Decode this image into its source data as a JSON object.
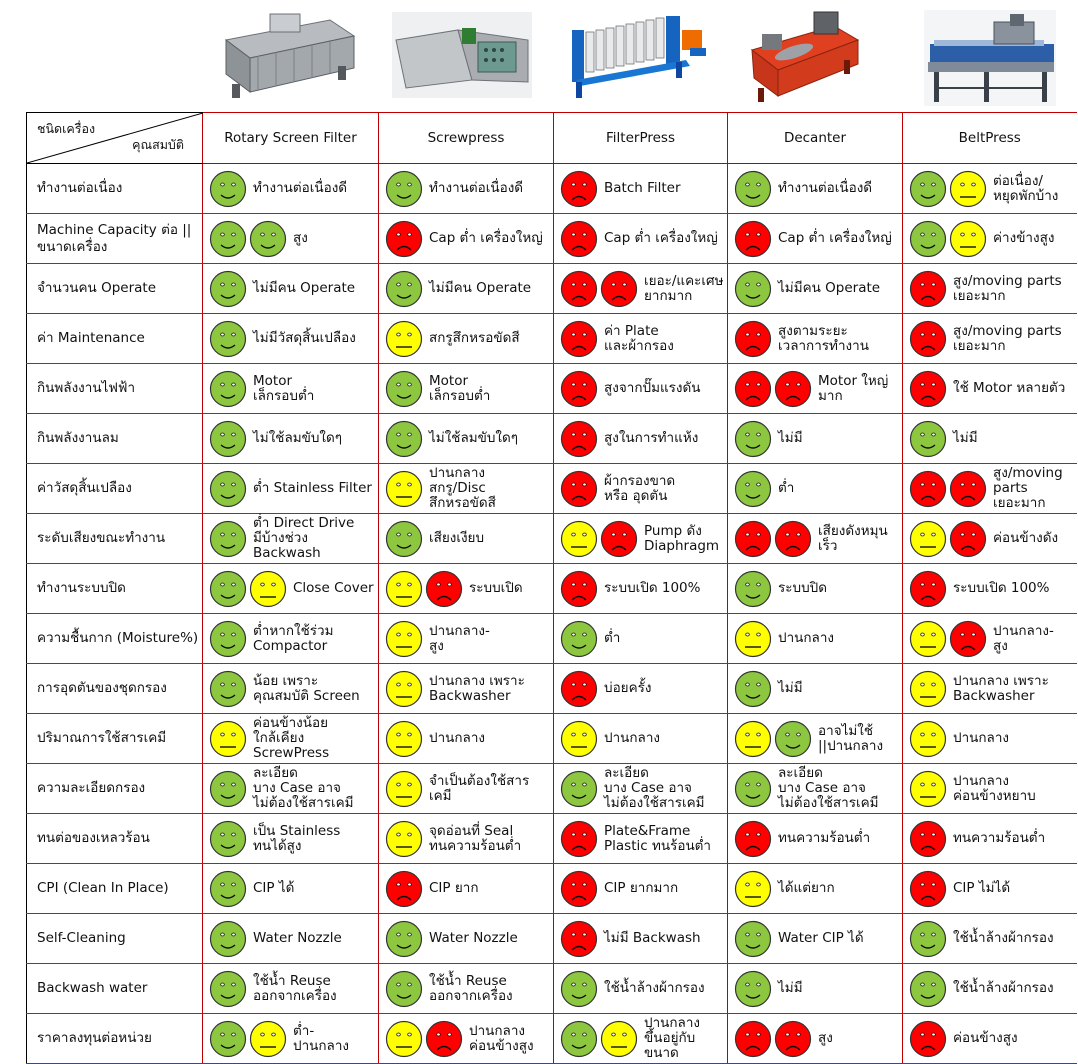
{
  "header": {
    "corner_top": "ชนิดเครื่อง",
    "corner_bottom": "คุณสมบัติ",
    "machines": [
      "Rotary Screen Filter",
      "Screwpress",
      "FilterPress",
      "Decanter",
      "BeltPress"
    ],
    "machine_images": [
      "rotary-screen-filter-image",
      "screwpress-image",
      "filterpress-image",
      "decanter-image",
      "beltpress-image"
    ]
  },
  "colors": {
    "green": "#8dc63f",
    "yellow": "#ffff00",
    "red": "#ff0000"
  },
  "rows": [
    {
      "label": "ทำงานต่อเนื่อง",
      "cells": [
        {
          "faces": [
            "g"
          ],
          "text": "ทำงานต่อเนื่องดี"
        },
        {
          "faces": [
            "g"
          ],
          "text": "ทำงานต่อเนื่องดี"
        },
        {
          "faces": [
            "r"
          ],
          "text": "Batch Filter"
        },
        {
          "faces": [
            "g"
          ],
          "text": "ทำงานต่อเนื่องดี"
        },
        {
          "faces": [
            "g",
            "y"
          ],
          "text": "ต่อเนื่อง/\nหยุดพักบ้าง"
        }
      ]
    },
    {
      "label": "Machine Capacity ต่อ ||\nขนาดเครื่อง",
      "cells": [
        {
          "faces": [
            "g",
            "g"
          ],
          "text": "สูง"
        },
        {
          "faces": [
            "r"
          ],
          "text": "Cap ต่ำ เครื่องใหญ่"
        },
        {
          "faces": [
            "r"
          ],
          "text": "Cap ต่ำ เครื่องใหญ่"
        },
        {
          "faces": [
            "r"
          ],
          "text": "Cap ต่ำ เครื่องใหญ่"
        },
        {
          "faces": [
            "g",
            "y"
          ],
          "text": "ค่างข้างสูง"
        }
      ]
    },
    {
      "label": "จำนวนคน Operate",
      "cells": [
        {
          "faces": [
            "g"
          ],
          "text": "ไม่มีคน Operate"
        },
        {
          "faces": [
            "g"
          ],
          "text": "ไม่มีคน Operate"
        },
        {
          "faces": [
            "r",
            "r"
          ],
          "text": "เยอะ/แคะเศษ\nยากมาก"
        },
        {
          "faces": [
            "g"
          ],
          "text": "ไม่มีคน Operate"
        },
        {
          "faces": [
            "r"
          ],
          "text": "สูง/moving parts\nเยอะมาก"
        }
      ]
    },
    {
      "label": "ค่า Maintenance",
      "cells": [
        {
          "faces": [
            "g"
          ],
          "text": "ไม่มีวัสดุสิ้นเปลือง"
        },
        {
          "faces": [
            "y"
          ],
          "text": "สกรูสึกหรอขัดสี"
        },
        {
          "faces": [
            "r"
          ],
          "text": "ค่า Plate\nและผ้ากรอง"
        },
        {
          "faces": [
            "r"
          ],
          "text": "สูงตามระยะ\nเวลาการทำงาน"
        },
        {
          "faces": [
            "r"
          ],
          "text": "สูง/moving parts\nเยอะมาก"
        }
      ]
    },
    {
      "label": "กินพลังงานไฟฟ้า",
      "cells": [
        {
          "faces": [
            "g"
          ],
          "text": "Motor\nเล็กรอบต่ำ"
        },
        {
          "faces": [
            "g"
          ],
          "text": "Motor\nเล็กรอบต่ำ"
        },
        {
          "faces": [
            "r"
          ],
          "text": "สูงจากปั๊มแรงดัน"
        },
        {
          "faces": [
            "r",
            "r"
          ],
          "text": "Motor ใหญ่\nมาก"
        },
        {
          "faces": [
            "r"
          ],
          "text": "ใช้ Motor หลายตัว"
        }
      ]
    },
    {
      "label": "กินพลังงานลม",
      "cells": [
        {
          "faces": [
            "g"
          ],
          "text": "ไม่ใช้ลมขับใดๆ"
        },
        {
          "faces": [
            "g"
          ],
          "text": "ไม่ใช้ลมขับใดๆ"
        },
        {
          "faces": [
            "r"
          ],
          "text": "สูงในการทำแห้ง"
        },
        {
          "faces": [
            "g"
          ],
          "text": "ไม่มี"
        },
        {
          "faces": [
            "g"
          ],
          "text": "ไม่มี"
        }
      ]
    },
    {
      "label": "ค่าวัสดุสิ้นเปลือง",
      "cells": [
        {
          "faces": [
            "g"
          ],
          "text": "ต่ำ Stainless Filter"
        },
        {
          "faces": [
            "y"
          ],
          "text": "ปานกลาง\nสกรู/Disc\nสึกหรอขัดสี"
        },
        {
          "faces": [
            "r"
          ],
          "text": "ผ้ากรองขาด\nหรือ อุดตัน"
        },
        {
          "faces": [
            "g"
          ],
          "text": "ต่ำ"
        },
        {
          "faces": [
            "r",
            "r"
          ],
          "text": "สูง/moving\nparts\nเยอะมาก"
        }
      ]
    },
    {
      "label": "ระดับเสียงขณะทำงาน",
      "cells": [
        {
          "faces": [
            "g"
          ],
          "text": "ต่ำ Direct Drive\nมีบ้างช่วง Backwash"
        },
        {
          "faces": [
            "g"
          ],
          "text": "เสียงเงียบ"
        },
        {
          "faces": [
            "y",
            "r"
          ],
          "text": "Pump ดัง\nDiaphragm"
        },
        {
          "faces": [
            "r",
            "r"
          ],
          "text": "เสียงดังหมุน\nเร็ว"
        },
        {
          "faces": [
            "y",
            "r"
          ],
          "text": "ค่อนข้างดัง"
        }
      ]
    },
    {
      "label": "ทำงานระบบปิด",
      "cells": [
        {
          "faces": [
            "g",
            "y"
          ],
          "text": "Close Cover"
        },
        {
          "faces": [
            "y",
            "r"
          ],
          "text": "ระบบเปิด"
        },
        {
          "faces": [
            "r"
          ],
          "text": "ระบบเปิด 100%"
        },
        {
          "faces": [
            "g"
          ],
          "text": "ระบบปิด"
        },
        {
          "faces": [
            "r"
          ],
          "text": "ระบบเปิด 100%"
        }
      ]
    },
    {
      "label": "ความชื้นกาก (Moisture%)",
      "cells": [
        {
          "faces": [
            "g"
          ],
          "text": "ต่ำหากใช้ร่วม\nCompactor"
        },
        {
          "faces": [
            "y"
          ],
          "text": "ปานกลาง-\nสูง"
        },
        {
          "faces": [
            "g"
          ],
          "text": "ต่ำ"
        },
        {
          "faces": [
            "y"
          ],
          "text": "ปานกลาง"
        },
        {
          "faces": [
            "y",
            "r"
          ],
          "text": "ปานกลาง-\nสูง"
        }
      ]
    },
    {
      "label": "การอุดตันของชุดกรอง",
      "cells": [
        {
          "faces": [
            "g"
          ],
          "text": "น้อย เพราะ\nคุณสมบัติ Screen"
        },
        {
          "faces": [
            "y"
          ],
          "text": "ปานกลาง เพราะ\nBackwasher"
        },
        {
          "faces": [
            "r"
          ],
          "text": "บ่อยครั้ง"
        },
        {
          "faces": [
            "g"
          ],
          "text": "ไม่มี"
        },
        {
          "faces": [
            "y"
          ],
          "text": "ปานกลาง เพราะ\nBackwasher"
        }
      ]
    },
    {
      "label": "ปริมาณการใช้สารเคมี",
      "cells": [
        {
          "faces": [
            "y"
          ],
          "text": "ค่อนข้างน้อย\nใกล้เคียง\nScrewPress"
        },
        {
          "faces": [
            "y"
          ],
          "text": "ปานกลาง"
        },
        {
          "faces": [
            "y"
          ],
          "text": "ปานกลาง"
        },
        {
          "faces": [
            "y",
            "g"
          ],
          "text": "อาจไม่ใช้\n||ปานกลาง"
        },
        {
          "faces": [
            "y"
          ],
          "text": "ปานกลาง"
        }
      ]
    },
    {
      "label": "ความละเอียดกรอง",
      "cells": [
        {
          "faces": [
            "g"
          ],
          "text": "ละเอียด\nบาง Case อาจ\nไม่ต้องใช้สารเคมี"
        },
        {
          "faces": [
            "y"
          ],
          "text": "จำเป็นต้องใช้สาร\nเคมี"
        },
        {
          "faces": [
            "g"
          ],
          "text": "ละเอียด\nบาง Case อาจ\nไม่ต้องใช้สารเคมี"
        },
        {
          "faces": [
            "g"
          ],
          "text": "ละเอียด\nบาง Case อาจ\nไม่ต้องใช้สารเคมี"
        },
        {
          "faces": [
            "y"
          ],
          "text": "ปานกลาง\nค่อนข้างหยาบ"
        }
      ]
    },
    {
      "label": "ทนต่อของเหลวร้อน",
      "cells": [
        {
          "faces": [
            "g"
          ],
          "text": "เป็น Stainless\nทนได้สูง"
        },
        {
          "faces": [
            "y"
          ],
          "text": "จุดอ่อนที่ Seal\nทนความร้อนต่ำ"
        },
        {
          "faces": [
            "r"
          ],
          "text": "Plate&Frame\nPlastic ทนร้อนต่ำ"
        },
        {
          "faces": [
            "r"
          ],
          "text": "ทนความร้อนต่ำ"
        },
        {
          "faces": [
            "r"
          ],
          "text": "ทนความร้อนต่ำ"
        }
      ]
    },
    {
      "label": "CPI (Clean In Place)",
      "cells": [
        {
          "faces": [
            "g"
          ],
          "text": "CIP ได้"
        },
        {
          "faces": [
            "r"
          ],
          "text": "CIP ยาก"
        },
        {
          "faces": [
            "r"
          ],
          "text": "CIP ยากมาก"
        },
        {
          "faces": [
            "y"
          ],
          "text": "ได้แต่ยาก"
        },
        {
          "faces": [
            "r"
          ],
          "text": "CIP ไม่ได้"
        }
      ]
    },
    {
      "label": "Self-Cleaning",
      "cells": [
        {
          "faces": [
            "g"
          ],
          "text": "Water Nozzle"
        },
        {
          "faces": [
            "g"
          ],
          "text": "Water Nozzle"
        },
        {
          "faces": [
            "r"
          ],
          "text": "ไม่มี Backwash"
        },
        {
          "faces": [
            "g"
          ],
          "text": "Water CIP ได้"
        },
        {
          "faces": [
            "g"
          ],
          "text": "ใช้น้ำล้างผ้ากรอง"
        }
      ]
    },
    {
      "label": "Backwash water",
      "cells": [
        {
          "faces": [
            "g"
          ],
          "text": "ใช้น้ำ Reuse\nออกจากเครื่อง"
        },
        {
          "faces": [
            "g"
          ],
          "text": "ใช้น้ำ Reuse\nออกจากเครื่อง"
        },
        {
          "faces": [
            "g"
          ],
          "text": "ใช้น้ำล้างผ้ากรอง"
        },
        {
          "faces": [
            "g"
          ],
          "text": "ไม่มี"
        },
        {
          "faces": [
            "g"
          ],
          "text": "ใช้น้ำล้างผ้ากรอง"
        }
      ]
    },
    {
      "label": "ราคาลงทุนต่อหน่วย",
      "cells": [
        {
          "faces": [
            "g",
            "y"
          ],
          "text": "ต่ำ-\nปานกลาง"
        },
        {
          "faces": [
            "y",
            "r"
          ],
          "text": "ปานกลาง\nค่อนข้างสูง"
        },
        {
          "faces": [
            "g",
            "y"
          ],
          "text": "ปานกลาง\nขึ้นอยู่กับขนาด"
        },
        {
          "faces": [
            "r",
            "r"
          ],
          "text": "สูง"
        },
        {
          "faces": [
            "r"
          ],
          "text": "ค่อนข้างสูง"
        }
      ]
    }
  ]
}
